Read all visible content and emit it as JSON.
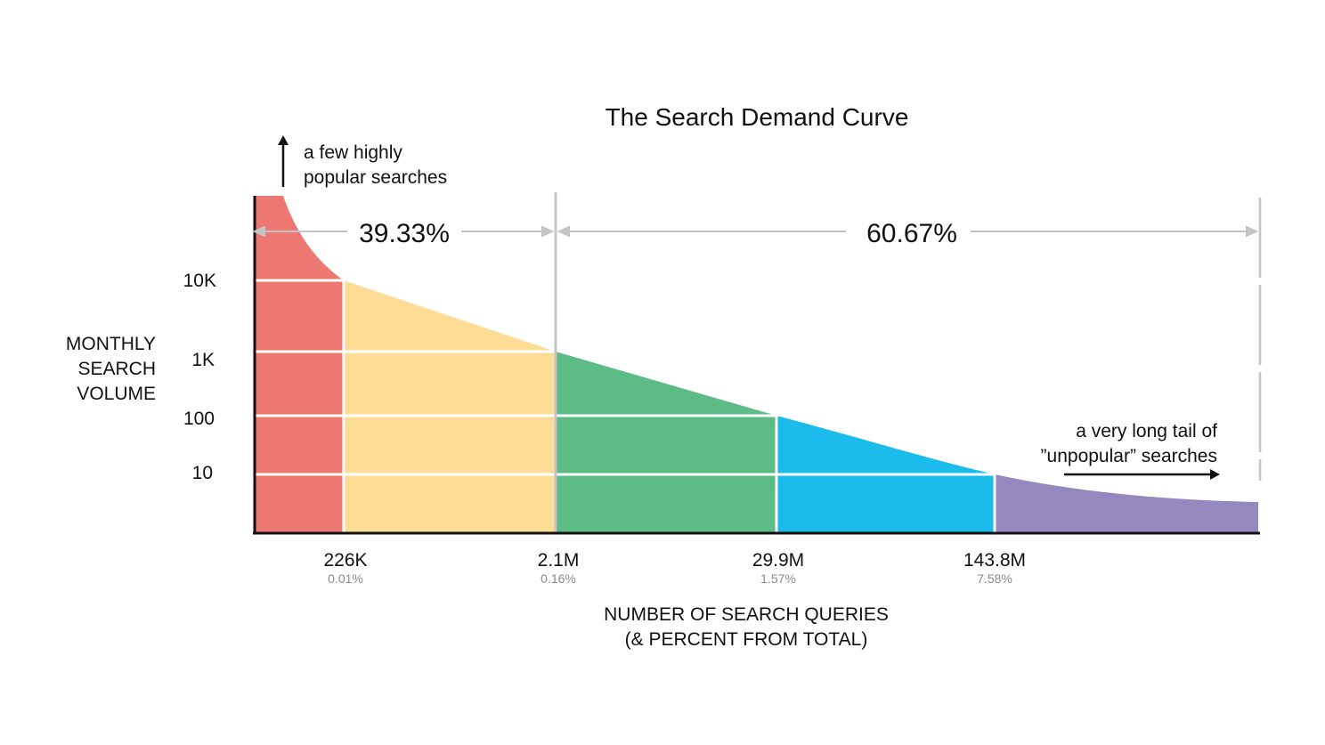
{
  "chart_data": {
    "type": "area",
    "title": "The Search Demand Curve",
    "ylabel": [
      "MONTHLY",
      "SEARCH",
      "VOLUME"
    ],
    "xlabel": [
      "NUMBER OF SEARCH QUERIES",
      "(& PERCENT FROM TOTAL)"
    ],
    "y_scale": "log",
    "y_ticks": [
      {
        "label": "10K",
        "value": 10000
      },
      {
        "label": "1K",
        "value": 1000
      },
      {
        "label": "100",
        "value": 100
      },
      {
        "label": "10",
        "value": 10
      }
    ],
    "x_ticks": [
      {
        "label": "226K",
        "sublabel": "0.01%"
      },
      {
        "label": "2.1M",
        "sublabel": "0.16%"
      },
      {
        "label": "29.9M",
        "sublabel": "1.57%"
      },
      {
        "label": "143.8M",
        "sublabel": "7.58%"
      }
    ],
    "segments": [
      {
        "color": "#ED7872"
      },
      {
        "color": "#FDDC95"
      },
      {
        "color": "#5DBB85"
      },
      {
        "color": "#1BBCEC"
      },
      {
        "color": "#9488BF"
      }
    ],
    "shares": [
      {
        "label": "39.33%",
        "value": 39.33
      },
      {
        "label": "60.67%",
        "value": 60.67
      }
    ],
    "annotations": {
      "head": [
        "a few highly",
        "popular searches"
      ],
      "tail": [
        "a very long tail of",
        "”unpopular” searches"
      ]
    }
  },
  "colors": {
    "axis": "#111111",
    "divider": "#c4c4c4",
    "gridline": "#ffffff",
    "tick_text": "#111111",
    "subtick_text": "#8a8a8a"
  }
}
